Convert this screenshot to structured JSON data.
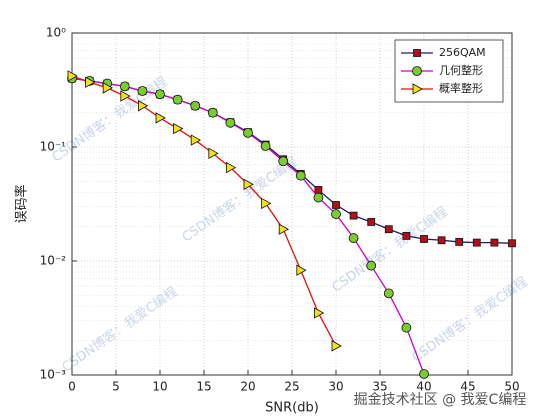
{
  "chart_data": {
    "type": "line",
    "xlabel": "SNR(db)",
    "ylabel": "误码率",
    "xlim": [
      0,
      50
    ],
    "xticks": [
      0,
      5,
      10,
      15,
      20,
      25,
      30,
      35,
      40,
      45,
      50
    ],
    "ylim": [
      0.001,
      1
    ],
    "yscale": "log",
    "yticks": [
      {
        "value": 0.001,
        "label": "10⁻³"
      },
      {
        "value": 0.01,
        "label": "10⁻²"
      },
      {
        "value": 0.1,
        "label": "10⁻¹"
      },
      {
        "value": 1,
        "label": "10⁰"
      }
    ],
    "grid": true,
    "minor_grid": true,
    "legend_position": "upper-right",
    "watermark": "CSDN博客：我爱C编程",
    "footer": "掘金技术社区 @ 我爱C编程",
    "series": [
      {
        "name": "256QAM",
        "color": "#1c1c5c",
        "marker": "square",
        "marker_color": "#b0101a",
        "x": [
          0,
          2,
          4,
          6,
          8,
          10,
          12,
          14,
          16,
          18,
          20,
          22,
          24,
          26,
          28,
          30,
          32,
          34,
          36,
          38,
          40,
          42,
          44,
          46,
          48,
          50
        ],
        "values": [
          0.4,
          0.38,
          0.36,
          0.34,
          0.31,
          0.29,
          0.26,
          0.23,
          0.2,
          0.165,
          0.135,
          0.105,
          0.078,
          0.058,
          0.042,
          0.031,
          0.025,
          0.022,
          0.019,
          0.0166,
          0.0156,
          0.0152,
          0.0147,
          0.0145,
          0.0145,
          0.0143
        ]
      },
      {
        "name": "几何整形",
        "color": "#cc00cc",
        "marker": "circle",
        "marker_color": "#7acc30",
        "x": [
          0,
          2,
          4,
          6,
          8,
          10,
          12,
          14,
          16,
          18,
          20,
          22,
          24,
          26,
          28,
          30,
          32,
          34,
          36,
          38,
          40
        ],
        "values": [
          0.4,
          0.38,
          0.36,
          0.34,
          0.31,
          0.29,
          0.26,
          0.23,
          0.2,
          0.163,
          0.133,
          0.102,
          0.075,
          0.056,
          0.036,
          0.0258,
          0.0159,
          0.0091,
          0.0052,
          0.0026,
          0.00102
        ]
      },
      {
        "name": "概率整形",
        "color": "#e01010",
        "marker": "triangle-right",
        "marker_color": "#f0e020",
        "x": [
          0,
          2,
          4,
          6,
          8,
          10,
          12,
          14,
          16,
          18,
          20,
          22,
          24,
          26,
          28,
          30
        ],
        "values": [
          0.42,
          0.37,
          0.33,
          0.28,
          0.23,
          0.18,
          0.145,
          0.115,
          0.088,
          0.066,
          0.047,
          0.032,
          0.019,
          0.0083,
          0.0035,
          0.0018
        ]
      }
    ]
  }
}
